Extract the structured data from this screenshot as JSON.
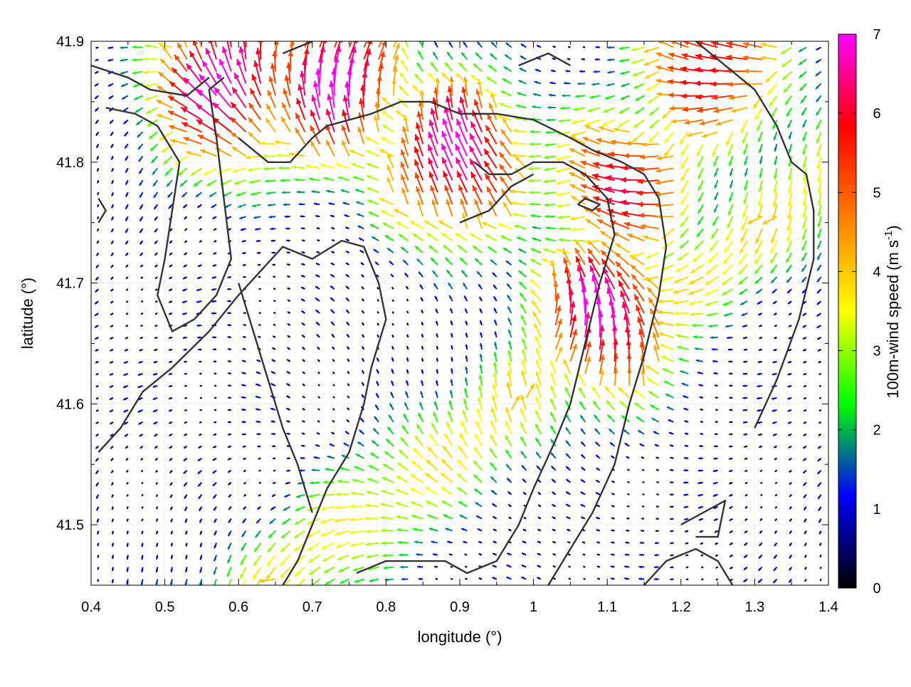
{
  "chart_data": {
    "type": "vector-field",
    "title": "",
    "xlabel": "longitude (°)",
    "ylabel": "latitude (°)",
    "xlim": [
      0.4,
      1.4
    ],
    "ylim": [
      41.45,
      41.9
    ],
    "x_ticks": [
      "0.4",
      "0.5",
      "0.6",
      "0.7",
      "0.8",
      "0.9",
      "1",
      "1.1",
      "1.2",
      "1.3",
      "1.4"
    ],
    "y_ticks": [
      "41.5",
      "41.6",
      "41.7",
      "41.8",
      "41.9"
    ],
    "grid": true,
    "colorbar": {
      "label_prefix": "100m-wind speed (m s",
      "label_sup": "-1",
      "label_suffix": ")",
      "range": [
        0,
        7
      ],
      "ticks": [
        "0",
        "1",
        "2",
        "3",
        "4",
        "5",
        "6",
        "7"
      ],
      "colormap": [
        "#000000",
        "#0000ff",
        "#00ff00",
        "#ffff00",
        "#ff8000",
        "#ff0000",
        "#ff00ff"
      ]
    },
    "wind_field_description": {
      "grid_spacing_deg_lon": 0.02,
      "grid_spacing_deg_lat": 0.01,
      "max_speed": 7,
      "maxima_regions": [
        {
          "lon": 1.1,
          "lat": 41.67,
          "speed": 7
        },
        {
          "lon": 0.9,
          "lat": 41.8,
          "speed": 7
        },
        {
          "lon": 0.73,
          "lat": 41.86,
          "speed": 7
        },
        {
          "lon": 0.59,
          "lat": 41.86,
          "speed": 7
        },
        {
          "lon": 1.13,
          "lat": 41.78,
          "speed": 6
        },
        {
          "lon": 1.25,
          "lat": 41.88,
          "speed": 6
        }
      ]
    },
    "contours": [
      [
        [
          0.4,
          41.88
        ],
        [
          0.45,
          41.87
        ],
        [
          0.48,
          41.86
        ],
        [
          0.53,
          41.855
        ],
        [
          0.56,
          41.87
        ]
      ],
      [
        [
          0.42,
          41.845
        ],
        [
          0.46,
          41.84
        ],
        [
          0.49,
          41.83
        ],
        [
          0.52,
          41.8
        ],
        [
          0.51,
          41.76
        ],
        [
          0.5,
          41.72
        ],
        [
          0.49,
          41.69
        ],
        [
          0.51,
          41.66
        ],
        [
          0.54,
          41.67
        ],
        [
          0.57,
          41.69
        ],
        [
          0.59,
          41.72
        ],
        [
          0.58,
          41.77
        ],
        [
          0.57,
          41.82
        ],
        [
          0.56,
          41.86
        ],
        [
          0.58,
          41.87
        ]
      ],
      [
        [
          0.6,
          41.82
        ],
        [
          0.64,
          41.8
        ],
        [
          0.67,
          41.8
        ],
        [
          0.7,
          41.82
        ],
        [
          0.72,
          41.83
        ],
        [
          0.78,
          41.84
        ],
        [
          0.82,
          41.85
        ],
        [
          0.86,
          41.85
        ],
        [
          0.9,
          41.84
        ],
        [
          0.95,
          41.84
        ],
        [
          1.0,
          41.835
        ],
        [
          1.05,
          41.82
        ],
        [
          1.08,
          41.81
        ],
        [
          1.12,
          41.8
        ],
        [
          1.15,
          41.79
        ],
        [
          1.17,
          41.77
        ],
        [
          1.18,
          41.73
        ],
        [
          1.17,
          41.69
        ],
        [
          1.15,
          41.64
        ],
        [
          1.13,
          41.6
        ],
        [
          1.11,
          41.55
        ],
        [
          1.08,
          41.51
        ],
        [
          1.04,
          41.47
        ],
        [
          1.02,
          41.45
        ]
      ],
      [
        [
          0.41,
          41.56
        ],
        [
          0.44,
          41.58
        ],
        [
          0.47,
          41.61
        ],
        [
          0.51,
          41.63
        ],
        [
          0.56,
          41.66
        ],
        [
          0.6,
          41.69
        ],
        [
          0.63,
          41.71
        ],
        [
          0.66,
          41.73
        ],
        [
          0.7,
          41.72
        ],
        [
          0.74,
          41.735
        ],
        [
          0.77,
          41.73
        ],
        [
          0.79,
          41.7
        ],
        [
          0.8,
          41.67
        ],
        [
          0.78,
          41.63
        ],
        [
          0.77,
          41.6
        ],
        [
          0.75,
          41.56
        ],
        [
          0.72,
          41.53
        ],
        [
          0.7,
          41.5
        ],
        [
          0.68,
          41.47
        ],
        [
          0.66,
          41.45
        ]
      ],
      [
        [
          0.6,
          41.7
        ],
        [
          0.62,
          41.66
        ],
        [
          0.64,
          41.62
        ],
        [
          0.66,
          41.58
        ],
        [
          0.68,
          41.55
        ],
        [
          0.7,
          41.51
        ]
      ],
      [
        [
          0.76,
          41.46
        ],
        [
          0.8,
          41.47
        ],
        [
          0.83,
          41.47
        ],
        [
          0.88,
          41.47
        ],
        [
          0.91,
          41.46
        ],
        [
          0.95,
          41.47
        ],
        [
          0.98,
          41.5
        ],
        [
          1.0,
          41.53
        ],
        [
          1.03,
          41.57
        ],
        [
          1.05,
          41.6
        ],
        [
          1.07,
          41.65
        ],
        [
          1.09,
          41.7
        ],
        [
          1.11,
          41.74
        ],
        [
          1.1,
          41.77
        ],
        [
          1.07,
          41.79
        ],
        [
          1.04,
          41.8
        ],
        [
          1.0,
          41.8
        ],
        [
          0.97,
          41.79
        ],
        [
          0.94,
          41.79
        ],
        [
          0.92,
          41.8
        ]
      ],
      [
        [
          1.2,
          41.5
        ],
        [
          1.23,
          41.51
        ],
        [
          1.26,
          41.52
        ],
        [
          1.25,
          41.49
        ],
        [
          1.22,
          41.49
        ]
      ],
      [
        [
          1.15,
          41.45
        ],
        [
          1.18,
          41.47
        ],
        [
          1.22,
          41.48
        ],
        [
          1.25,
          41.47
        ],
        [
          1.27,
          41.45
        ]
      ],
      [
        [
          1.3,
          41.58
        ],
        [
          1.33,
          41.62
        ],
        [
          1.36,
          41.67
        ],
        [
          1.38,
          41.72
        ],
        [
          1.38,
          41.76
        ],
        [
          1.37,
          41.79
        ],
        [
          1.35,
          41.8
        ],
        [
          1.33,
          41.83
        ],
        [
          1.3,
          41.86
        ],
        [
          1.26,
          41.88
        ],
        [
          1.22,
          41.9
        ]
      ],
      [
        [
          0.9,
          41.75
        ],
        [
          0.94,
          41.76
        ],
        [
          0.97,
          41.78
        ],
        [
          1.0,
          41.79
        ]
      ],
      [
        [
          1.06,
          41.765
        ],
        [
          1.08,
          41.76
        ],
        [
          1.09,
          41.765
        ],
        [
          1.07,
          41.77
        ],
        [
          1.06,
          41.765
        ]
      ],
      [
        [
          0.98,
          41.88
        ],
        [
          1.02,
          41.89
        ],
        [
          1.05,
          41.88
        ]
      ],
      [
        [
          0.66,
          41.89
        ],
        [
          0.7,
          41.9
        ]
      ],
      [
        [
          0.41,
          41.77
        ],
        [
          0.42,
          41.76
        ],
        [
          0.41,
          41.75
        ]
      ]
    ]
  }
}
